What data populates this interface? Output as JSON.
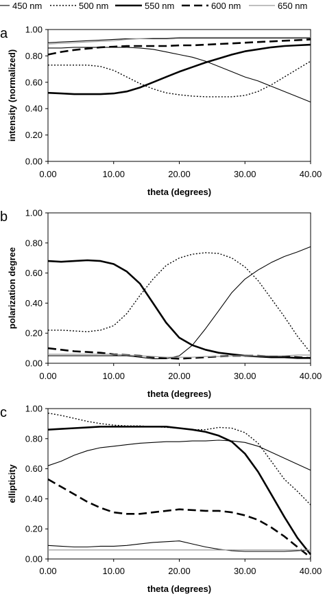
{
  "figure": {
    "legend": [
      {
        "label": "450 nm",
        "color": "#000000",
        "style": "thin"
      },
      {
        "label": "500 nm",
        "color": "#000000",
        "style": "dotted"
      },
      {
        "label": "550 nm",
        "color": "#000000",
        "style": "thick"
      },
      {
        "label": "600 nm",
        "color": "#000000",
        "style": "dashed"
      },
      {
        "label": "650 nm",
        "color": "#999999",
        "style": "thin-gray"
      }
    ]
  },
  "chart_data": [
    {
      "type": "line",
      "panel_label": "a",
      "xlabel": "theta (degrees)",
      "ylabel": "intensity (normalized)",
      "xlim": [
        0,
        40
      ],
      "ylim": [
        0,
        1
      ],
      "x_ticks": [
        "0.00",
        "10.00",
        "20.00",
        "30.00",
        "40.00"
      ],
      "y_ticks": [
        "0.00",
        "0.20",
        "0.40",
        "0.60",
        "0.80",
        "1.00"
      ],
      "grid": false,
      "legend_position": "top",
      "x": [
        0,
        2,
        4,
        6,
        8,
        10,
        12,
        14,
        16,
        18,
        20,
        22,
        24,
        26,
        28,
        30,
        32,
        34,
        36,
        38,
        40
      ],
      "series": [
        {
          "name": "450 nm",
          "values": [
            0.9,
            0.905,
            0.91,
            0.915,
            0.92,
            0.925,
            0.93,
            0.93,
            0.93,
            0.93,
            0.935,
            0.935,
            0.935,
            0.935,
            0.935,
            0.935,
            0.935,
            0.935,
            0.935,
            0.935,
            0.935
          ]
        },
        {
          "name": "450 nm",
          "values": [
            0.86,
            0.86,
            0.865,
            0.865,
            0.865,
            0.865,
            0.865,
            0.86,
            0.85,
            0.83,
            0.81,
            0.79,
            0.76,
            0.72,
            0.68,
            0.64,
            0.61,
            0.57,
            0.53,
            0.49,
            0.45
          ]
        },
        {
          "name": "500 nm",
          "values": [
            0.73,
            0.73,
            0.73,
            0.73,
            0.72,
            0.69,
            0.64,
            0.59,
            0.55,
            0.52,
            0.505,
            0.495,
            0.49,
            0.49,
            0.49,
            0.5,
            0.53,
            0.58,
            0.64,
            0.7,
            0.76
          ]
        },
        {
          "name": "550 nm",
          "values": [
            0.52,
            0.515,
            0.51,
            0.51,
            0.51,
            0.515,
            0.53,
            0.56,
            0.6,
            0.64,
            0.68,
            0.715,
            0.75,
            0.78,
            0.81,
            0.835,
            0.85,
            0.865,
            0.875,
            0.88,
            0.885
          ]
        },
        {
          "name": "600 nm",
          "values": [
            0.81,
            0.83,
            0.845,
            0.855,
            0.865,
            0.87,
            0.875,
            0.875,
            0.875,
            0.875,
            0.88,
            0.88,
            0.885,
            0.89,
            0.895,
            0.9,
            0.905,
            0.91,
            0.915,
            0.92,
            0.925
          ]
        },
        {
          "name": "650 nm",
          "values": [
            0.89,
            0.895,
            0.9,
            0.905,
            0.91,
            0.915,
            0.925,
            0.93,
            0.935,
            0.935,
            0.94,
            0.94,
            0.94,
            0.94,
            0.94,
            0.94,
            0.94,
            0.94,
            0.94,
            0.94,
            0.94
          ]
        }
      ]
    },
    {
      "type": "line",
      "panel_label": "b",
      "xlabel": "theta (degrees)",
      "ylabel": "polarization degree",
      "xlim": [
        0,
        40
      ],
      "ylim": [
        0,
        1
      ],
      "x_ticks": [
        "0.00",
        "10.00",
        "20.00",
        "30.00",
        "40.00"
      ],
      "y_ticks": [
        "0.00",
        "0.20",
        "0.40",
        "0.60",
        "0.80",
        "1.00"
      ],
      "grid": false,
      "x": [
        0,
        2,
        4,
        6,
        8,
        10,
        12,
        14,
        16,
        18,
        20,
        22,
        24,
        26,
        28,
        30,
        32,
        34,
        36,
        38,
        40
      ],
      "series": [
        {
          "name": "450 nm",
          "values": [
            0.05,
            0.05,
            0.05,
            0.05,
            0.05,
            0.05,
            0.05,
            0.04,
            0.03,
            0.03,
            0.05,
            0.12,
            0.23,
            0.35,
            0.47,
            0.56,
            0.62,
            0.67,
            0.71,
            0.74,
            0.775
          ]
        },
        {
          "name": "500 nm",
          "values": [
            0.22,
            0.22,
            0.215,
            0.21,
            0.22,
            0.25,
            0.33,
            0.45,
            0.56,
            0.65,
            0.7,
            0.725,
            0.735,
            0.73,
            0.7,
            0.64,
            0.55,
            0.43,
            0.31,
            0.18,
            0.07
          ]
        },
        {
          "name": "550 nm",
          "values": [
            0.68,
            0.675,
            0.68,
            0.685,
            0.68,
            0.66,
            0.61,
            0.53,
            0.4,
            0.27,
            0.17,
            0.12,
            0.09,
            0.07,
            0.06,
            0.05,
            0.045,
            0.04,
            0.04,
            0.035,
            0.035
          ]
        },
        {
          "name": "600 nm",
          "values": [
            0.1,
            0.09,
            0.08,
            0.075,
            0.07,
            0.06,
            0.055,
            0.05,
            0.04,
            0.035,
            0.03,
            0.035,
            0.04,
            0.045,
            0.05,
            0.05,
            0.05,
            0.045,
            0.045,
            0.04,
            0.035
          ]
        },
        {
          "name": "650 nm",
          "values": [
            0.06,
            0.06,
            0.06,
            0.06,
            0.06,
            0.06,
            0.055,
            0.05,
            0.045,
            0.04,
            0.04,
            0.04,
            0.045,
            0.045,
            0.05,
            0.05,
            0.05,
            0.05,
            0.05,
            0.055,
            0.055
          ]
        }
      ]
    },
    {
      "type": "line",
      "panel_label": "c",
      "xlabel": "theta (degrees)",
      "ylabel": "ellipticity",
      "xlim": [
        0,
        40
      ],
      "ylim": [
        0,
        1
      ],
      "x_ticks": [
        "0.00",
        "10.00",
        "20.00",
        "30.00",
        "40.00"
      ],
      "y_ticks": [
        "0.00",
        "0.20",
        "0.40",
        "0.60",
        "0.80",
        "1.00"
      ],
      "grid": false,
      "x": [
        0,
        2,
        4,
        6,
        8,
        10,
        12,
        14,
        16,
        18,
        20,
        22,
        24,
        26,
        28,
        30,
        32,
        34,
        36,
        38,
        40
      ],
      "series": [
        {
          "name": "450 nm",
          "values": [
            0.09,
            0.085,
            0.08,
            0.08,
            0.085,
            0.085,
            0.09,
            0.1,
            0.11,
            0.115,
            0.12,
            0.1,
            0.08,
            0.065,
            0.055,
            0.05,
            0.05,
            0.05,
            0.05,
            0.055,
            0.06
          ]
        },
        {
          "name": "450 nm",
          "values": [
            0.62,
            0.65,
            0.69,
            0.72,
            0.74,
            0.75,
            0.76,
            0.77,
            0.775,
            0.78,
            0.78,
            0.785,
            0.785,
            0.79,
            0.785,
            0.775,
            0.75,
            0.71,
            0.67,
            0.63,
            0.59
          ]
        },
        {
          "name": "500 nm",
          "values": [
            0.97,
            0.955,
            0.935,
            0.915,
            0.9,
            0.89,
            0.885,
            0.885,
            0.88,
            0.875,
            0.87,
            0.86,
            0.86,
            0.875,
            0.87,
            0.84,
            0.77,
            0.65,
            0.53,
            0.45,
            0.36
          ]
        },
        {
          "name": "550 nm",
          "values": [
            0.86,
            0.865,
            0.87,
            0.875,
            0.88,
            0.88,
            0.88,
            0.88,
            0.88,
            0.88,
            0.87,
            0.86,
            0.845,
            0.82,
            0.78,
            0.7,
            0.58,
            0.43,
            0.28,
            0.14,
            0.03
          ]
        },
        {
          "name": "600 nm",
          "values": [
            0.53,
            0.48,
            0.43,
            0.38,
            0.34,
            0.31,
            0.3,
            0.3,
            0.31,
            0.32,
            0.33,
            0.325,
            0.32,
            0.32,
            0.31,
            0.29,
            0.26,
            0.21,
            0.15,
            0.08,
            0.01
          ]
        },
        {
          "name": "650 nm",
          "values": [
            0.06,
            0.06,
            0.06,
            0.06,
            0.06,
            0.06,
            0.06,
            0.06,
            0.06,
            0.06,
            0.06,
            0.06,
            0.06,
            0.06,
            0.06,
            0.06,
            0.06,
            0.06,
            0.06,
            0.06,
            0.06
          ]
        }
      ]
    }
  ]
}
